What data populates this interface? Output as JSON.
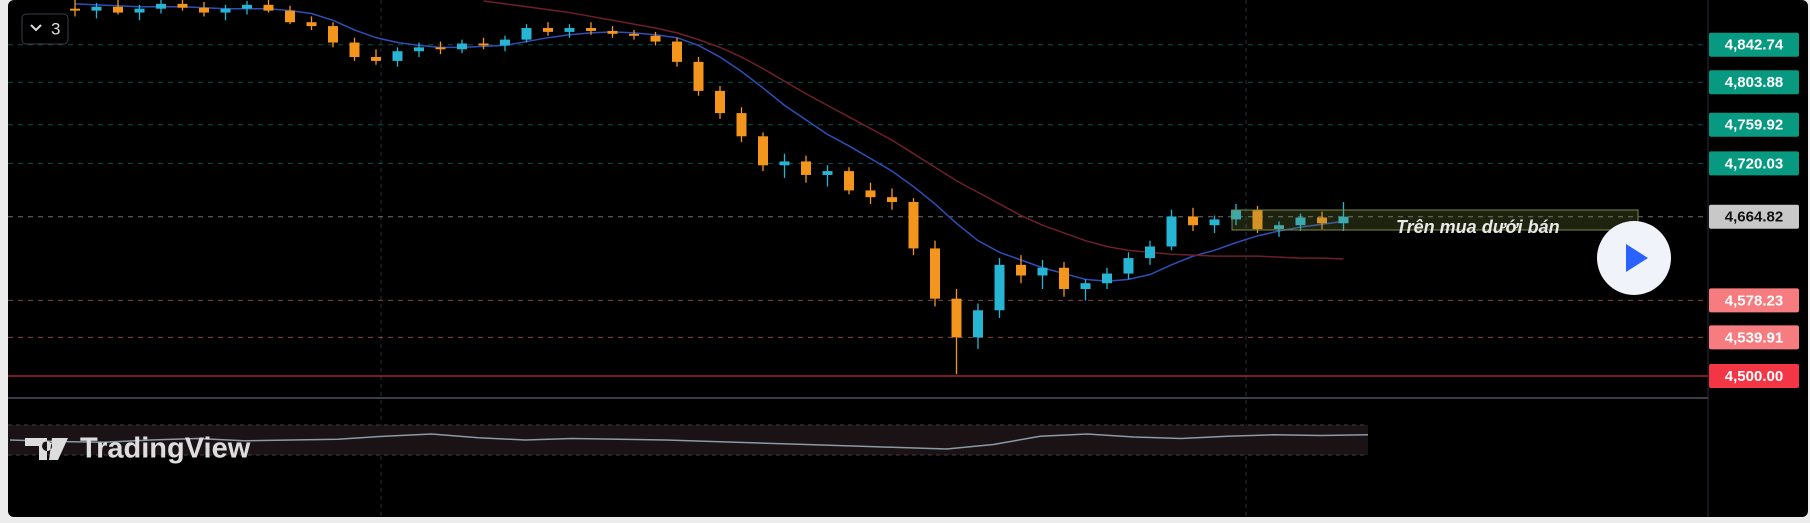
{
  "toolbar": {
    "interval": "3"
  },
  "chart": {
    "ylim": [
      4500,
      4889
    ],
    "up_color": "#26b5d3",
    "down_color": "#f4961e",
    "candles": [
      [
        4880,
        4889,
        4872,
        4878
      ],
      [
        4878,
        4886,
        4870,
        4882
      ],
      [
        4882,
        4889,
        4874,
        4876
      ],
      [
        4876,
        4884,
        4868,
        4880
      ],
      [
        4880,
        4889,
        4875,
        4885
      ],
      [
        4885,
        4889,
        4878,
        4881
      ],
      [
        4881,
        4887,
        4872,
        4876
      ],
      [
        4876,
        4884,
        4868,
        4880
      ],
      [
        4880,
        4888,
        4874,
        4884
      ],
      [
        4884,
        4889,
        4876,
        4878
      ],
      [
        4878,
        4883,
        4864,
        4866
      ],
      [
        4866,
        4872,
        4858,
        4862
      ],
      [
        4862,
        4866,
        4840,
        4845
      ],
      [
        4845,
        4850,
        4826,
        4830
      ],
      [
        4830,
        4838,
        4822,
        4826
      ],
      [
        4826,
        4840,
        4820,
        4836
      ],
      [
        4836,
        4845,
        4830,
        4840
      ],
      [
        4840,
        4846,
        4833,
        4838
      ],
      [
        4838,
        4848,
        4834,
        4844
      ],
      [
        4844,
        4850,
        4838,
        4842
      ],
      [
        4842,
        4852,
        4836,
        4848
      ],
      [
        4848,
        4864,
        4845,
        4860
      ],
      [
        4860,
        4866,
        4852,
        4856
      ],
      [
        4856,
        4864,
        4850,
        4860
      ],
      [
        4860,
        4866,
        4853,
        4857
      ],
      [
        4857,
        4862,
        4850,
        4854
      ],
      [
        4854,
        4858,
        4848,
        4852
      ],
      [
        4852,
        4856,
        4842,
        4846
      ],
      [
        4846,
        4850,
        4820,
        4825
      ],
      [
        4825,
        4830,
        4790,
        4795
      ],
      [
        4795,
        4800,
        4766,
        4772
      ],
      [
        4772,
        4778,
        4742,
        4748
      ],
      [
        4748,
        4752,
        4712,
        4718
      ],
      [
        4718,
        4730,
        4705,
        4722
      ],
      [
        4722,
        4728,
        4700,
        4708
      ],
      [
        4708,
        4718,
        4696,
        4712
      ],
      [
        4712,
        4716,
        4688,
        4692
      ],
      [
        4692,
        4700,
        4678,
        4685
      ],
      [
        4685,
        4694,
        4672,
        4680
      ],
      [
        4680,
        4684,
        4625,
        4632
      ],
      [
        4632,
        4640,
        4572,
        4580
      ],
      [
        4580,
        4590,
        4502,
        4540
      ],
      [
        4540,
        4575,
        4528,
        4568
      ],
      [
        4568,
        4622,
        4560,
        4615
      ],
      [
        4615,
        4625,
        4596,
        4604
      ],
      [
        4604,
        4620,
        4590,
        4612
      ],
      [
        4612,
        4618,
        4582,
        4590
      ],
      [
        4590,
        4600,
        4578,
        4596
      ],
      [
        4596,
        4612,
        4590,
        4606
      ],
      [
        4606,
        4628,
        4600,
        4622
      ],
      [
        4622,
        4640,
        4615,
        4634
      ],
      [
        4634,
        4672,
        4630,
        4665
      ],
      [
        4665,
        4674,
        4650,
        4656
      ],
      [
        4656,
        4666,
        4648,
        4662
      ],
      [
        4662,
        4678,
        4656,
        4672
      ],
      [
        4672,
        4676,
        4648,
        4652
      ],
      [
        4652,
        4660,
        4644,
        4656
      ],
      [
        4656,
        4668,
        4650,
        4664
      ],
      [
        4664,
        4670,
        4652,
        4658
      ],
      [
        4658,
        4680,
        4650,
        4664.82
      ]
    ],
    "ma_fast": {
      "color": "#2f4fb8",
      "values": [
        4885,
        4884,
        4883,
        4882,
        4882,
        4882,
        4881,
        4880,
        4880,
        4880,
        4878,
        4875,
        4868,
        4858,
        4850,
        4845,
        4842,
        4840,
        4840,
        4841,
        4842,
        4846,
        4850,
        4853,
        4855,
        4856,
        4855,
        4853,
        4850,
        4842,
        4830,
        4815,
        4798,
        4780,
        4765,
        4750,
        4738,
        4725,
        4712,
        4696,
        4678,
        4658,
        4640,
        4628,
        4620,
        4612,
        4606,
        4600,
        4598,
        4600,
        4605,
        4615,
        4624,
        4630,
        4638,
        4645,
        4650,
        4654,
        4657,
        4660
      ]
    },
    "ma_slow": {
      "color": "#6e1f2a",
      "values": [
        null,
        null,
        null,
        null,
        null,
        null,
        null,
        null,
        null,
        null,
        null,
        null,
        null,
        null,
        null,
        null,
        null,
        null,
        null,
        4888,
        4885,
        4882,
        4879,
        4876,
        4872,
        4868,
        4864,
        4860,
        4855,
        4848,
        4840,
        4830,
        4818,
        4805,
        4792,
        4780,
        4768,
        4756,
        4744,
        4730,
        4716,
        4702,
        4690,
        4678,
        4666,
        4656,
        4648,
        4640,
        4634,
        4630,
        4628,
        4626,
        4625,
        4624,
        4624,
        4624,
        4623,
        4622,
        4622,
        4621
      ]
    },
    "price_levels": [
      {
        "value": 4842.74,
        "label": "4,842.74",
        "color": "#089981"
      },
      {
        "value": 4803.88,
        "label": "4,803.88",
        "color": "#089981"
      },
      {
        "value": 4759.92,
        "label": "4,759.92",
        "color": "#089981"
      },
      {
        "value": 4720.03,
        "label": "4,720.03",
        "color": "#089981"
      },
      {
        "value": 4664.82,
        "label": "4,664.82",
        "color": "#c8c8c8"
      },
      {
        "value": 4578.23,
        "label": "4,578.23",
        "color": "#f77c80"
      },
      {
        "value": 4539.91,
        "label": "4,539.91",
        "color": "#f77c80"
      },
      {
        "value": 4500.0,
        "label": "4,500.00",
        "color": "#f23645"
      }
    ],
    "annotation": "Trên mua dưới bán",
    "oscillator": {
      "ylim": [
        30,
        70
      ],
      "color": "#8a9aa6",
      "values": [
        50,
        48,
        47,
        50,
        52,
        49,
        50,
        51,
        55,
        58,
        53,
        50,
        52,
        51,
        50,
        48,
        46,
        44,
        42,
        40,
        38,
        44,
        55,
        58,
        54,
        52,
        55,
        57,
        56,
        57
      ]
    }
  },
  "brand": "TradingView"
}
